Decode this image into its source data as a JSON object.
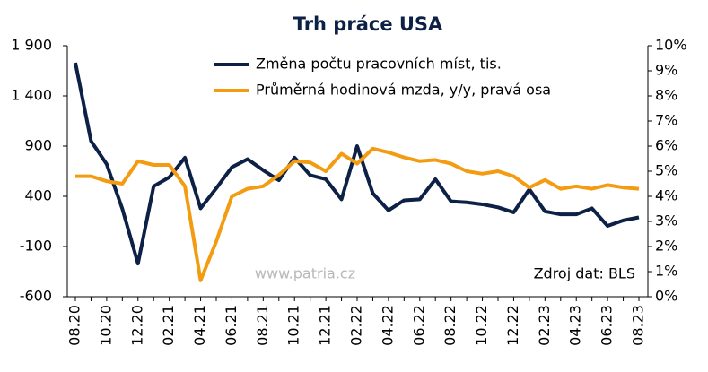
{
  "chart_data": {
    "type": "line",
    "title": "Trh práce USA",
    "categories": [
      "08.20",
      null,
      "10.20",
      null,
      "12.20",
      null,
      "02.21",
      null,
      "04.21",
      null,
      "06.21",
      null,
      "08.21",
      null,
      "10.21",
      null,
      "12.21",
      null,
      "02.22",
      null,
      "04.22",
      null,
      "06.22",
      null,
      "08.22",
      null,
      "10.22",
      null,
      "12.22",
      null,
      "02.23",
      null,
      "04.23",
      null,
      "06.23",
      null,
      "08.23"
    ],
    "series": [
      {
        "name": "Změna počtu pracovních míst, tis.",
        "color": "#0d2146",
        "values": [
          1730,
          950,
          720,
          275,
          -270,
          500,
          590,
          785,
          280,
          480,
          690,
          770,
          660,
          560,
          785,
          610,
          570,
          370,
          900,
          430,
          260,
          360,
          370,
          570,
          350,
          340,
          320,
          290,
          240,
          470,
          250,
          220,
          220,
          280,
          105,
          160,
          190
        ]
      },
      {
        "name": "Průměrná hodinová mzda, y/y, pravá osa",
        "color": "#f39c12",
        "axis": "y2",
        "values": [
          4.8,
          4.8,
          4.6,
          4.5,
          5.4,
          5.25,
          5.25,
          4.4,
          0.65,
          2.2,
          4.0,
          4.3,
          4.4,
          4.85,
          5.4,
          5.35,
          5.0,
          5.7,
          5.3,
          5.9,
          5.75,
          5.55,
          5.4,
          5.45,
          5.3,
          5.0,
          4.9,
          5.0,
          4.8,
          4.35,
          4.65,
          4.3,
          4.4,
          4.3,
          4.45,
          4.35,
          4.3
        ]
      }
    ],
    "ylim": [
      -600,
      1900
    ],
    "yticks": [
      -600,
      -100,
      400,
      900,
      {
        "value": 1400,
        "label": "1 400"
      },
      {
        "value": 1900,
        "label": "1 900"
      }
    ],
    "y2lim": [
      0,
      10
    ],
    "y2ticks": [
      {
        "value": 0,
        "label": "0%"
      },
      {
        "value": 1,
        "label": "1%"
      },
      {
        "value": 2,
        "label": "2%"
      },
      {
        "value": 3,
        "label": "3%"
      },
      {
        "value": 4,
        "label": "4%"
      },
      {
        "value": 5,
        "label": "5%"
      },
      {
        "value": 6,
        "label": "6%"
      },
      {
        "value": 7,
        "label": "7%"
      },
      {
        "value": 8,
        "label": "8%"
      },
      {
        "value": 9,
        "label": "9%"
      },
      {
        "value": 10,
        "label": "10%"
      }
    ],
    "legend": "upper center",
    "annotations": [
      "www.patria.cz",
      "Zdroj dat: BLS"
    ]
  }
}
